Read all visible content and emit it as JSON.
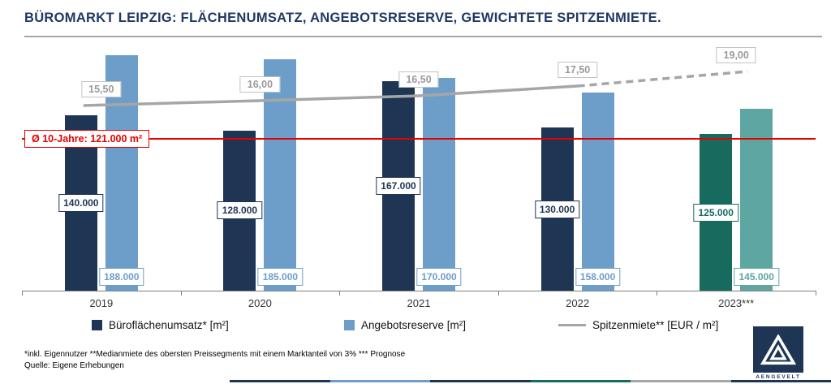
{
  "title": "BÜROMARKT LEIPZIG: FLÄCHENUMSATZ, ANGEBOTSRESERVE, GEWICHTETE SPITZENMIETE.",
  "average_line": {
    "label": "Ø 10-Jahre: 121.000 m²",
    "value": 121000,
    "color": "#e60000"
  },
  "chart_data": {
    "type": "bar",
    "categories": [
      "2019",
      "2020",
      "2021",
      "2022",
      "2023***"
    ],
    "series": [
      {
        "name": "Büroflächenumsatz* [m²]",
        "type": "bar",
        "values": [
          140000,
          128000,
          167000,
          130000,
          125000
        ],
        "labels": [
          "140.000",
          "128.000",
          "167.000",
          "130.000",
          "125.000"
        ],
        "colors": [
          "#1e3553",
          "#1e3553",
          "#1e3553",
          "#1e3553",
          "#176a5e"
        ]
      },
      {
        "name": "Angebotsreserve [m²]",
        "type": "bar",
        "values": [
          188000,
          185000,
          170000,
          158000,
          145000
        ],
        "labels": [
          "188.000",
          "185.000",
          "170.000",
          "158.000",
          "145.000"
        ],
        "colors": [
          "#6d9ec9",
          "#6d9ec9",
          "#6d9ec9",
          "#6d9ec9",
          "#5ea6a2"
        ]
      },
      {
        "name": "Spitzenmiete** [EUR / m²]",
        "type": "line",
        "values": [
          15.5,
          16.0,
          16.5,
          17.5,
          19.0
        ],
        "labels": [
          "15,50",
          "16,00",
          "16,50",
          "17,50",
          "19,00"
        ],
        "color": "#a6a6a6",
        "dashed_from_index": 3
      }
    ],
    "ylim": [
      0,
      195000
    ],
    "grid": false,
    "legend_position": "bottom"
  },
  "footnotes": [
    "*inkl. Eigennutzer **Medianmiete des obersten Preissegments mit einem Marktanteil von 3% *** Prognose",
    "Quelle: Eigene Erhebungen"
  ],
  "logo": {
    "text": "AENGEVELT"
  },
  "colors": {
    "title": "#1f3864",
    "axis": "#808080"
  },
  "bottom_strip_colors": [
    "#1e3553",
    "#6d9ec9",
    "#1e3553",
    "#176a5e",
    "#a6a6a6",
    "#1e3553"
  ]
}
